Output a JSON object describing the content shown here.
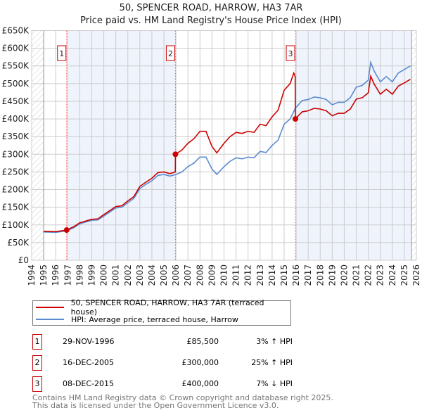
{
  "chart_data": {
    "type": "line",
    "title": "50, SPENCER ROAD, HARROW, HA3 7AR",
    "subtitle": "Price paid vs. HM Land Registry's House Price Index (HPI)",
    "xlim": [
      1994,
      2026
    ],
    "ylim": [
      0,
      650000
    ],
    "y_ticks": [
      "£0",
      "£50K",
      "£100K",
      "£150K",
      "£200K",
      "£250K",
      "£300K",
      "£350K",
      "£400K",
      "£450K",
      "£500K",
      "£550K",
      "£600K",
      "£650K"
    ],
    "x_ticks": [
      "1994",
      "1995",
      "1996",
      "1997",
      "1998",
      "1999",
      "2000",
      "2001",
      "2002",
      "2003",
      "2004",
      "2005",
      "2006",
      "2007",
      "2008",
      "2009",
      "2010",
      "2011",
      "2012",
      "2013",
      "2014",
      "2015",
      "2016",
      "2017",
      "2018",
      "2019",
      "2020",
      "2021",
      "2022",
      "2023",
      "2024",
      "2025",
      "2026"
    ],
    "grid": true,
    "series": [
      {
        "name": "50, SPENCER ROAD, HARROW, HA3 7AR (terraced house)",
        "color": "#cc0000",
        "x": [
          1995,
          1996,
          1996.9,
          1997.5,
          1998,
          1999,
          1999.5,
          2000,
          2001,
          2001.5,
          2002,
          2002.5,
          2003,
          2003.5,
          2004,
          2004.5,
          2005,
          2005.5,
          2005.95,
          2005.96,
          2006.5,
          2007,
          2007.5,
          2008,
          2008.5,
          2009,
          2009.4,
          2010,
          2010.5,
          2011,
          2011.5,
          2012,
          2012.5,
          2013,
          2013.5,
          2014,
          2014.5,
          2015,
          2015.5,
          2015.8,
          2015.92,
          2015.93,
          2016.5,
          2017,
          2017.5,
          2018,
          2018.5,
          2019,
          2019.5,
          2020,
          2020.5,
          2021,
          2021.5,
          2022,
          2022.2,
          2022.5,
          2023,
          2023.5,
          2024,
          2024.5,
          2025,
          2025.5
        ],
        "y": [
          82000,
          81000,
          85500,
          95000,
          106000,
          116000,
          117000,
          129000,
          152000,
          154000,
          168000,
          180000,
          209000,
          221000,
          232000,
          248000,
          250000,
          245000,
          250000,
          300000,
          312000,
          331000,
          344000,
          365000,
          365000,
          322000,
          304000,
          331000,
          350000,
          362000,
          359000,
          365000,
          362000,
          385000,
          381000,
          406000,
          425000,
          481000,
          500000,
          530000,
          520000,
          400000,
          420000,
          423000,
          430000,
          428000,
          423000,
          409000,
          416000,
          416000,
          428000,
          456000,
          460000,
          474000,
          521000,
          498000,
          470000,
          484000,
          470000,
          493000,
          502000,
          512000
        ]
      },
      {
        "name": "HPI: Average price, terraced house, Harrow",
        "color": "#5b8bd0",
        "x": [
          1995,
          1996,
          1996.9,
          1997.5,
          1998,
          1999,
          1999.5,
          2000,
          2001,
          2001.5,
          2002,
          2002.5,
          2003,
          2003.5,
          2004,
          2004.5,
          2005,
          2005.5,
          2006,
          2006.5,
          2007,
          2007.5,
          2008,
          2008.5,
          2009,
          2009.4,
          2010,
          2010.5,
          2011,
          2011.5,
          2012,
          2012.5,
          2013,
          2013.5,
          2014,
          2014.5,
          2015,
          2015.5,
          2015.93,
          2016.5,
          2017,
          2017.5,
          2018,
          2018.5,
          2019,
          2019.5,
          2020,
          2020.5,
          2021,
          2021.5,
          2022,
          2022.2,
          2022.5,
          2023,
          2023.5,
          2024,
          2024.5,
          2025,
          2025.5
        ],
        "y": [
          80000,
          79000,
          83000,
          92000,
          103000,
          113000,
          114000,
          125000,
          148000,
          150000,
          163000,
          175000,
          203000,
          215000,
          225000,
          240000,
          243000,
          238000,
          243000,
          250000,
          265000,
          275000,
          292000,
          292000,
          258000,
          243000,
          265000,
          280000,
          290000,
          287000,
          292000,
          290000,
          308000,
          305000,
          325000,
          340000,
          385000,
          400000,
          430000,
          452000,
          455000,
          462000,
          460000,
          455000,
          440000,
          447000,
          447000,
          460000,
          490000,
          495000,
          510000,
          560000,
          535000,
          505000,
          520000,
          505000,
          530000,
          540000,
          550000
        ]
      }
    ],
    "sales": [
      {
        "label": "1",
        "x": 1996.91,
        "y": 85500,
        "date": "29-NOV-1996",
        "price": "£85,500",
        "hpi": "3% ↑ HPI"
      },
      {
        "label": "2",
        "x": 2005.96,
        "y": 300000,
        "date": "16-DEC-2005",
        "price": "£300,000",
        "hpi": "25% ↑ HPI"
      },
      {
        "label": "3",
        "x": 2015.94,
        "y": 400000,
        "date": "08-DEC-2015",
        "price": "£400,000",
        "hpi": "7% ↓ HPI"
      }
    ],
    "shaded_ranges": [
      [
        1996.91,
        2005.96
      ],
      [
        2015.94,
        2025.6
      ]
    ],
    "hatched_ranges": [
      [
        1994,
        1995
      ],
      [
        2025.6,
        2026
      ]
    ]
  },
  "footer": [
    "Contains HM Land Registry data © Crown copyright and database right 2025.",
    "This data is licensed under the Open Government Licence v3.0."
  ]
}
